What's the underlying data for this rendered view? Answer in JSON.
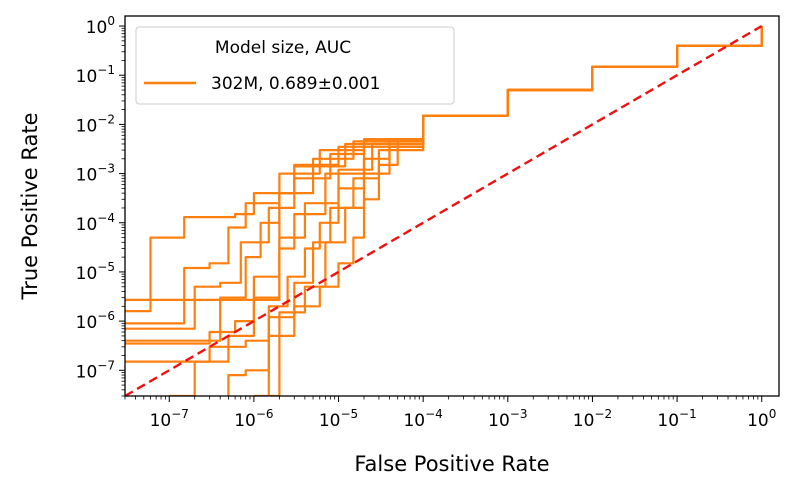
{
  "chart_data": {
    "type": "line",
    "xlabel": "False Positive Rate",
    "ylabel": "True Positive Rate",
    "xscale": "log",
    "yscale": "log",
    "xlim": [
      3e-08,
      1.6
    ],
    "ylim": [
      3e-08,
      1.6
    ],
    "x_ticks": [
      1e-07,
      1e-06,
      1e-05,
      0.0001,
      0.001,
      0.01,
      0.1,
      1
    ],
    "x_tick_labels": [
      {
        "base": "10",
        "exp": "−7"
      },
      {
        "base": "10",
        "exp": "−6"
      },
      {
        "base": "10",
        "exp": "−5"
      },
      {
        "base": "10",
        "exp": "−4"
      },
      {
        "base": "10",
        "exp": "−3"
      },
      {
        "base": "10",
        "exp": "−2"
      },
      {
        "base": "10",
        "exp": "−1"
      },
      {
        "base": "10",
        "exp": "0"
      }
    ],
    "y_ticks": [
      1e-07,
      1e-06,
      1e-05,
      0.0001,
      0.001,
      0.01,
      0.1,
      1
    ],
    "y_tick_labels": [
      {
        "base": "10",
        "exp": "−7"
      },
      {
        "base": "10",
        "exp": "−6"
      },
      {
        "base": "10",
        "exp": "−5"
      },
      {
        "base": "10",
        "exp": "−4"
      },
      {
        "base": "10",
        "exp": "−3"
      },
      {
        "base": "10",
        "exp": "−2"
      },
      {
        "base": "10",
        "exp": "−1"
      },
      {
        "base": "10",
        "exp": "0"
      }
    ],
    "legend": {
      "title": "Model size, AUC",
      "entries": [
        {
          "label": "302M, 0.689±0.001",
          "color": "#ff7f0e"
        }
      ],
      "placement": "upper-left"
    },
    "reference_line": {
      "name": "random",
      "color": "#ee1111",
      "style": "dashed",
      "points": [
        [
          3e-08,
          3e-08
        ],
        [
          1,
          1
        ]
      ]
    },
    "series_color": "#ff7f0e",
    "curves": [
      {
        "values": [
          [
            3e-08,
            2.7e-06
          ],
          [
            2e-06,
            2.7e-06
          ],
          [
            2e-06,
            0.0004
          ],
          [
            3e-06,
            0.0015
          ],
          [
            1e-05,
            0.0035
          ],
          [
            0.0001,
            0.015
          ],
          [
            0.001,
            0.05
          ],
          [
            0.01,
            0.15
          ],
          [
            0.1,
            0.4
          ],
          [
            1,
            1
          ]
        ]
      },
      {
        "values": [
          [
            3e-08,
            1.6e-06
          ],
          [
            6e-08,
            1.6e-06
          ],
          [
            6e-08,
            5e-05
          ],
          [
            1.5e-07,
            5e-05
          ],
          [
            1.5e-07,
            0.00013
          ],
          [
            6e-07,
            0.00015
          ],
          [
            1e-06,
            0.0004
          ],
          [
            3e-06,
            0.0014
          ],
          [
            1.2e-05,
            0.004
          ],
          [
            0.0001,
            0.015
          ],
          [
            0.001,
            0.05
          ],
          [
            0.01,
            0.15
          ],
          [
            0.1,
            0.4
          ],
          [
            1,
            1
          ]
        ]
      },
      {
        "values": [
          [
            3e-08,
            9e-07
          ],
          [
            1.5e-07,
            9e-07
          ],
          [
            1.5e-07,
            1.2e-05
          ],
          [
            3e-07,
            1.5e-05
          ],
          [
            5e-07,
            8e-05
          ],
          [
            8e-07,
            0.00025
          ],
          [
            2e-06,
            0.001
          ],
          [
            6e-06,
            0.003
          ],
          [
            2e-05,
            0.005
          ],
          [
            0.0001,
            0.015
          ],
          [
            0.001,
            0.05
          ],
          [
            0.01,
            0.15
          ],
          [
            0.1,
            0.4
          ],
          [
            1,
            1
          ]
        ]
      },
      {
        "values": [
          [
            3e-08,
            7e-07
          ],
          [
            2e-07,
            7e-07
          ],
          [
            2e-07,
            5e-06
          ],
          [
            4e-07,
            6e-06
          ],
          [
            7e-07,
            4e-05
          ],
          [
            1.5e-06,
            0.0002
          ],
          [
            3e-06,
            0.0008
          ],
          [
            8e-06,
            0.0025
          ],
          [
            2e-05,
            0.005
          ],
          [
            0.0001,
            0.015
          ],
          [
            0.001,
            0.05
          ],
          [
            0.01,
            0.15
          ],
          [
            0.1,
            0.4
          ],
          [
            1,
            1
          ]
        ]
      },
      {
        "values": [
          [
            3e-08,
            3.5e-07
          ],
          [
            1.5e-07,
            3.5e-07
          ],
          [
            3e-07,
            6e-07
          ],
          [
            6e-07,
            1e-06
          ],
          [
            1e-06,
            8e-06
          ],
          [
            2e-06,
            5e-05
          ],
          [
            4e-06,
            0.00025
          ],
          [
            1e-05,
            0.0012
          ],
          [
            2.5e-05,
            0.004
          ],
          [
            0.0001,
            0.015
          ],
          [
            0.001,
            0.05
          ],
          [
            0.01,
            0.15
          ],
          [
            0.1,
            0.4
          ],
          [
            1,
            1
          ]
        ]
      },
      {
        "values": [
          [
            3e-08,
            1.5e-07
          ],
          [
            3e-07,
            1.5e-07
          ],
          [
            3e-07,
            3e-07
          ],
          [
            8e-07,
            4e-07
          ],
          [
            1.5e-06,
            1.2e-06
          ],
          [
            3e-06,
            6e-06
          ],
          [
            5e-06,
            4e-05
          ],
          [
            8e-06,
            0.0002
          ],
          [
            1.5e-05,
            0.0008
          ],
          [
            3e-05,
            0.003
          ],
          [
            0.0001,
            0.015
          ],
          [
            0.001,
            0.05
          ],
          [
            0.01,
            0.15
          ],
          [
            0.1,
            0.4
          ],
          [
            1,
            1
          ]
        ]
      },
      {
        "values": [
          [
            5e-07,
            3e-08
          ],
          [
            5e-07,
            8e-08
          ],
          [
            8e-07,
            1e-07
          ],
          [
            1.5e-06,
            2e-06
          ],
          [
            2.5e-06,
            8e-06
          ],
          [
            4e-06,
            3e-05
          ],
          [
            6e-06,
            0.0001
          ],
          [
            1e-05,
            0.0005
          ],
          [
            2e-05,
            0.002
          ],
          [
            4e-05,
            0.005
          ],
          [
            0.0001,
            0.015
          ],
          [
            0.001,
            0.05
          ],
          [
            0.01,
            0.15
          ],
          [
            0.1,
            0.4
          ],
          [
            1,
            1
          ]
        ]
      },
      {
        "values": [
          [
            1e-06,
            3e-08
          ],
          [
            1.5e-06,
            5e-07
          ],
          [
            3e-06,
            2e-06
          ],
          [
            6e-06,
            5e-06
          ],
          [
            1e-05,
            1.5e-05
          ],
          [
            1.5e-05,
            5e-05
          ],
          [
            2e-05,
            0.0003
          ],
          [
            3e-05,
            0.0015
          ],
          [
            5e-05,
            0.005
          ],
          [
            0.0001,
            0.015
          ],
          [
            0.001,
            0.05
          ],
          [
            0.01,
            0.15
          ],
          [
            0.1,
            0.4
          ],
          [
            1,
            1
          ]
        ]
      },
      {
        "values": [
          [
            1.5e-06,
            3e-08
          ],
          [
            2e-06,
            1.5e-06
          ],
          [
            4e-06,
            5e-06
          ],
          [
            7e-06,
            4e-05
          ],
          [
            1.2e-05,
            0.0002
          ],
          [
            2e-05,
            0.001
          ],
          [
            4e-05,
            0.0035
          ],
          [
            0.0001,
            0.015
          ],
          [
            0.001,
            0.05
          ],
          [
            0.01,
            0.15
          ],
          [
            0.1,
            0.4
          ],
          [
            1,
            1
          ]
        ]
      },
      {
        "values": [
          [
            3e-08,
            4e-07
          ],
          [
            4e-07,
            4e-07
          ],
          [
            4e-07,
            3e-06
          ],
          [
            8e-07,
            2e-05
          ],
          [
            1.2e-06,
            0.0001
          ],
          [
            2e-06,
            0.0004
          ],
          [
            5e-06,
            0.002
          ],
          [
            1.5e-05,
            0.0045
          ],
          [
            0.0001,
            0.015
          ],
          [
            0.001,
            0.05
          ],
          [
            0.01,
            0.15
          ],
          [
            0.1,
            0.4
          ],
          [
            1,
            1
          ]
        ]
      },
      {
        "values": [
          [
            1e-07,
            3e-08
          ],
          [
            2e-07,
            1.5e-07
          ],
          [
            5e-07,
            5e-07
          ],
          [
            1e-06,
            3e-06
          ],
          [
            2e-06,
            3e-05
          ],
          [
            3e-06,
            0.00015
          ],
          [
            7e-06,
            0.001
          ],
          [
            2e-05,
            0.0045
          ],
          [
            0.0001,
            0.015
          ],
          [
            0.001,
            0.05
          ],
          [
            0.01,
            0.15
          ],
          [
            0.1,
            0.4
          ],
          [
            1,
            1
          ]
        ]
      }
    ]
  }
}
